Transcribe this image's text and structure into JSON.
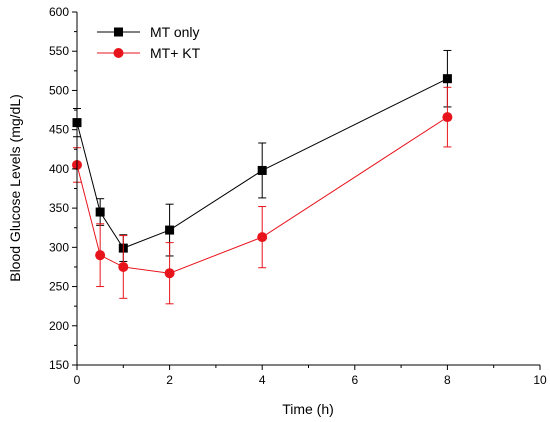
{
  "chart_data": {
    "type": "line",
    "title": "",
    "xlabel": "Time (h)",
    "ylabel": "Blood Glucose Levels (mg/dL)",
    "xlim": [
      0,
      10
    ],
    "ylim": [
      150,
      600
    ],
    "x_ticks": [
      "0",
      "2",
      "4",
      "6",
      "8",
      "10"
    ],
    "y_ticks": [
      "150",
      "200",
      "250",
      "300",
      "350",
      "400",
      "450",
      "500",
      "550",
      "600"
    ],
    "grid": false,
    "legend_position": "top-left",
    "series": [
      {
        "name": "MT only",
        "color": "#000000",
        "marker": "square",
        "x": [
          0,
          0.5,
          1,
          2,
          4,
          8
        ],
        "y": [
          459,
          345,
          299,
          322,
          398,
          515
        ],
        "err": [
          18,
          17,
          17,
          33,
          35,
          36
        ]
      },
      {
        "name": "MT+ KT",
        "color": "#e8141c",
        "marker": "circle",
        "x": [
          0,
          0.5,
          1,
          2,
          4,
          8
        ],
        "y": [
          405,
          290,
          275,
          267,
          313,
          466
        ],
        "err": [
          22,
          40,
          40,
          39,
          39,
          38
        ]
      }
    ]
  }
}
